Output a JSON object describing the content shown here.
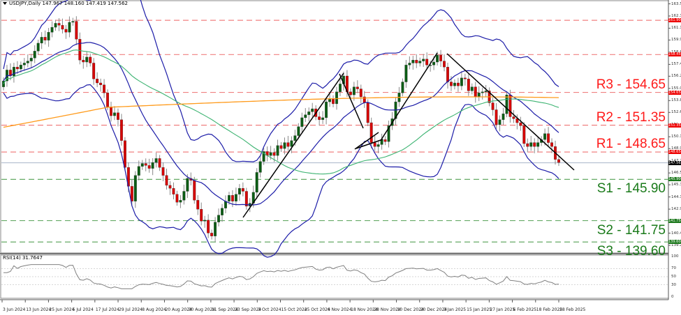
{
  "window": {
    "symbol_header": "USDJPY,Daily  147.967 148.160 147.419 147.562",
    "rsi_header": "RSI(14) 31.7647"
  },
  "colors": {
    "bull": "#0b5c14",
    "bear": "#d60000",
    "bollinger": "#1c1ca8",
    "ma100": "#3cb371",
    "ma200": "#ff9a1a",
    "resistance": "#f08080",
    "support": "#66aa66",
    "resistance_text": "#ff1a1a",
    "support_text": "#1a7a1a",
    "rsi_line": "#808080",
    "trendline": "#000000"
  },
  "chart_data": [
    {
      "type": "candlestick",
      "title": "USDJPY, Daily",
      "ohlc_last": {
        "open": 147.967,
        "high": 148.16,
        "low": 147.419,
        "close": 147.562
      },
      "ylim": [
        137.8,
        163.9
      ],
      "y_ticks": [
        "163.555",
        "162.330",
        "161.105",
        "159.915",
        "158.690",
        "157.465",
        "156.275",
        "155.050",
        "153.825",
        "152.635",
        "151.410",
        "150.185",
        "148.995",
        "147.770",
        "146.545",
        "145.355",
        "144.130",
        "142.905",
        "141.680",
        "140.490",
        "139.265",
        "138.075"
      ],
      "x_ticks": [
        "3 Jun 2024",
        "13 Jun 2024",
        "25 Jun 2024",
        "5 Jul 2024",
        "17 Jul 2024",
        "29 Jul 2024",
        "8 Aug 2024",
        "20 Aug 2024",
        "30 Aug 2024",
        "11 Sep 2024",
        "23 Sep 2024",
        "3 Oct 2024",
        "15 Oct 2024",
        "25 Oct 2024",
        "6 Nov 2024",
        "18 Nov 2024",
        "28 Nov 2024",
        "10 Dec 2024",
        "20 Dec 2024",
        "3 Jan 2025",
        "15 Jan 2025",
        "27 Jan 2025",
        "6 Feb 2025",
        "18 Feb 2025",
        "28 Feb 2025"
      ],
      "current_price": {
        "value": 147.562,
        "label": "147.562"
      },
      "levels": [
        {
          "id": "extra-top",
          "kind": "resistance",
          "value": 161.9,
          "tag": "161.900",
          "label": ""
        },
        {
          "id": "extra-2",
          "kind": "resistance",
          "value": 158.45,
          "tag": "158.450",
          "label": ""
        },
        {
          "id": "R3",
          "kind": "resistance",
          "value": 154.65,
          "tag": "154.650",
          "label": "R3 - 154.65"
        },
        {
          "id": "R2",
          "kind": "resistance",
          "value": 151.35,
          "tag": "151.350",
          "label": "R2 - 151.35"
        },
        {
          "id": "R1",
          "kind": "resistance",
          "value": 148.65,
          "tag": "148.650",
          "label": "R1 - 148.65"
        },
        {
          "id": "S1",
          "kind": "support",
          "value": 145.9,
          "tag": "145.900",
          "label": "S1 - 145.90"
        },
        {
          "id": "S2",
          "kind": "support",
          "value": 141.75,
          "tag": "141.750",
          "label": "S2 - 141.75"
        },
        {
          "id": "S3",
          "kind": "support",
          "value": 139.6,
          "tag": "139.600",
          "label": "S3 - 139.60"
        }
      ],
      "series": [
        {
          "name": "Close (approx.)",
          "type": "candles",
          "values": [
            155.8,
            156.9,
            156.3,
            157.2,
            157.0,
            157.4,
            157.6,
            157.8,
            158.1,
            158.8,
            159.6,
            160.2,
            159.9,
            160.7,
            161.2,
            161.6,
            161.4,
            161.0,
            160.7,
            161.7,
            161.8,
            160.0,
            157.9,
            157.7,
            158.2,
            157.6,
            156.0,
            155.6,
            155.4,
            154.6,
            153.2,
            152.3,
            152.6,
            151.9,
            149.8,
            147.1,
            145.2,
            143.7,
            146.3,
            147.2,
            147.5,
            147.3,
            147.0,
            147.6,
            148.0,
            147.1,
            146.3,
            145.3,
            145.0,
            144.4,
            143.6,
            143.8,
            144.7,
            146.0,
            145.8,
            143.8,
            142.9,
            141.7,
            141.8,
            140.5,
            140.2,
            141.6,
            142.3,
            143.0,
            143.7,
            144.3,
            143.7,
            144.4,
            145.0,
            144.7,
            143.2,
            143.5,
            144.6,
            146.6,
            147.7,
            148.7,
            148.3,
            148.6,
            148.3,
            149.3,
            149.0,
            149.6,
            149.2,
            149.8,
            150.3,
            151.2,
            152.1,
            152.4,
            152.7,
            153.0,
            152.2,
            151.9,
            152.1,
            153.7,
            154.0,
            153.5,
            154.7,
            155.5,
            156.3,
            154.7,
            154.4,
            155.2,
            155.0,
            154.2,
            153.6,
            151.6,
            149.6,
            149.2,
            149.4,
            149.9,
            149.7,
            151.3,
            152.0,
            153.7,
            154.6,
            155.7,
            157.4,
            157.6,
            157.9,
            157.6,
            157.8,
            158.0,
            157.4,
            157.4,
            157.7,
            158.4,
            157.8,
            157.2,
            155.7,
            155.3,
            155.6,
            155.3,
            156.1,
            156.0,
            154.8,
            155.2,
            154.2,
            154.6,
            154.7,
            154.8,
            153.6,
            152.9,
            151.4,
            151.9,
            152.5,
            154.4,
            152.2,
            152.0,
            151.6,
            151.3,
            149.5,
            149.2,
            149.6,
            149.2,
            149.6,
            149.9,
            150.5,
            149.6,
            149.2,
            147.9,
            147.6
          ]
        },
        {
          "name": "Bollinger Bands (20,2)",
          "type": "line"
        },
        {
          "name": "MA 100",
          "type": "line"
        },
        {
          "name": "MA 200",
          "type": "line"
        }
      ]
    },
    {
      "type": "line",
      "title": "RSI(14)",
      "current_value": 31.7647,
      "ylim": [
        0,
        100
      ],
      "y_ticks": [
        "100",
        "70",
        "50",
        "30",
        "0"
      ],
      "levels": [
        70,
        50,
        30
      ]
    }
  ]
}
